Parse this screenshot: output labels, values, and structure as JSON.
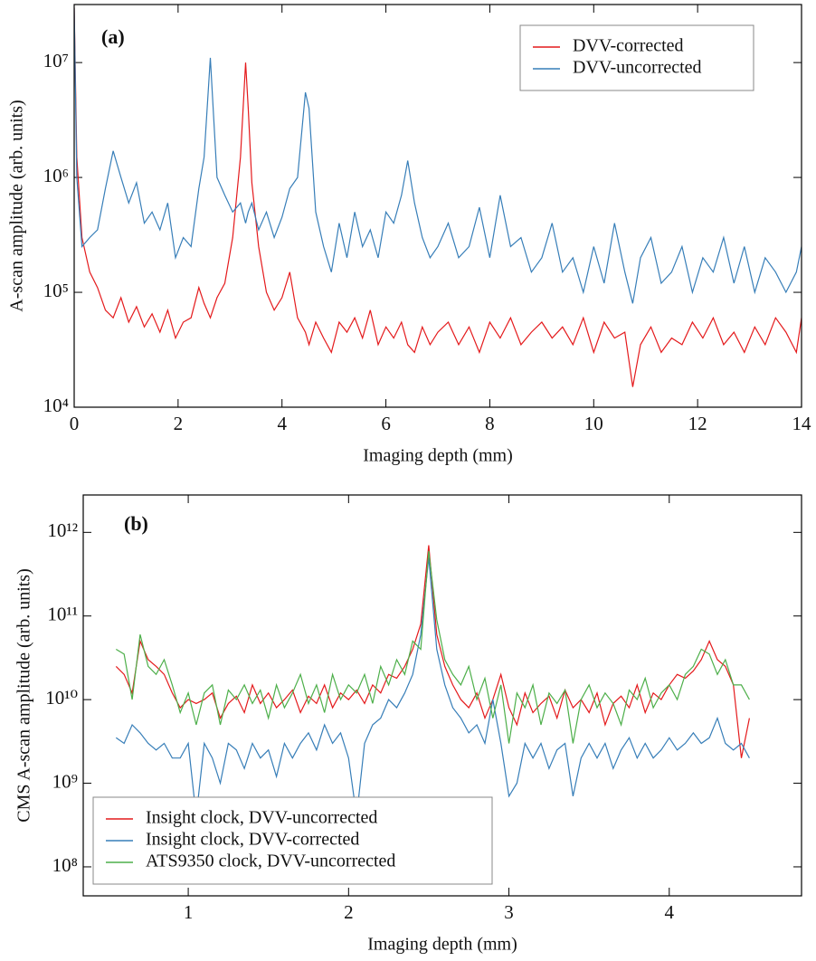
{
  "chart_data": [
    {
      "type": "line",
      "annotation": "(a)",
      "xlabel": "Imaging depth (mm)",
      "ylabel": "A-scan amplitude (arb. units)",
      "log_y": true,
      "legend": "upper right",
      "xlim": [
        0,
        14
      ],
      "ylim": [
        10000,
        32000000
      ],
      "xticks": [
        0,
        2,
        4,
        6,
        8,
        10,
        12,
        14
      ],
      "yticks": [
        {
          "value": 10000,
          "label": "10⁴"
        },
        {
          "value": 100000,
          "label": "10⁵"
        },
        {
          "value": 1000000,
          "label": "10⁶"
        },
        {
          "value": 10000000,
          "label": "10⁷"
        }
      ],
      "x": [
        0,
        0.05,
        0.15,
        0.3,
        0.45,
        0.6,
        0.75,
        0.9,
        1.05,
        1.2,
        1.35,
        1.5,
        1.65,
        1.8,
        1.95,
        2.1,
        2.25,
        2.4,
        2.5,
        2.62,
        2.75,
        2.9,
        3.05,
        3.2,
        3.3,
        3.35,
        3.42,
        3.55,
        3.7,
        3.85,
        4.0,
        4.15,
        4.3,
        4.45,
        4.52,
        4.65,
        4.8,
        4.95,
        5.1,
        5.25,
        5.4,
        5.55,
        5.7,
        5.85,
        6.0,
        6.15,
        6.3,
        6.42,
        6.55,
        6.7,
        6.85,
        7.0,
        7.2,
        7.4,
        7.6,
        7.8,
        8.0,
        8.2,
        8.4,
        8.6,
        8.8,
        9.0,
        9.2,
        9.4,
        9.6,
        9.8,
        10.0,
        10.2,
        10.4,
        10.6,
        10.75,
        10.9,
        11.1,
        11.3,
        11.5,
        11.7,
        11.9,
        12.1,
        12.3,
        12.5,
        12.7,
        12.9,
        13.1,
        13.3,
        13.5,
        13.7,
        13.9,
        14.0
      ],
      "series": [
        {
          "name": "DVV-corrected",
          "color": "#e41a1c",
          "values": [
            30000000,
            1500000,
            300000,
            150000,
            110000,
            70000,
            60000,
            90000,
            55000,
            75000,
            50000,
            65000,
            45000,
            70000,
            40000,
            55000,
            60000,
            110000,
            80000,
            60000,
            90000,
            120000,
            300000,
            1500000,
            10000000,
            4000000,
            900000,
            250000,
            100000,
            70000,
            90000,
            150000,
            60000,
            45000,
            35000,
            55000,
            40000,
            30000,
            55000,
            45000,
            60000,
            40000,
            70000,
            35000,
            50000,
            40000,
            55000,
            35000,
            30000,
            50000,
            35000,
            45000,
            55000,
            35000,
            50000,
            30000,
            55000,
            40000,
            60000,
            35000,
            45000,
            55000,
            40000,
            50000,
            35000,
            60000,
            30000,
            55000,
            40000,
            45000,
            15000,
            35000,
            50000,
            30000,
            40000,
            35000,
            55000,
            40000,
            60000,
            35000,
            45000,
            30000,
            50000,
            35000,
            60000,
            45000,
            30000,
            60000
          ]
        },
        {
          "name": "DVV-uncorrected",
          "color": "#377eb8",
          "values": [
            30000000,
            1000000,
            250000,
            300000,
            350000,
            800000,
            1700000,
            1000000,
            600000,
            900000,
            400000,
            500000,
            350000,
            600000,
            200000,
            300000,
            250000,
            800000,
            1500000,
            11000000,
            1000000,
            700000,
            500000,
            600000,
            400000,
            500000,
            600000,
            350000,
            500000,
            300000,
            450000,
            800000,
            1000000,
            5500000,
            4000000,
            500000,
            250000,
            150000,
            400000,
            200000,
            500000,
            250000,
            350000,
            200000,
            500000,
            400000,
            700000,
            1400000,
            600000,
            300000,
            200000,
            250000,
            400000,
            200000,
            250000,
            550000,
            200000,
            700000,
            250000,
            300000,
            150000,
            200000,
            400000,
            150000,
            200000,
            100000,
            250000,
            120000,
            400000,
            150000,
            80000,
            200000,
            300000,
            120000,
            150000,
            250000,
            100000,
            200000,
            150000,
            300000,
            120000,
            250000,
            100000,
            200000,
            150000,
            100000,
            150000,
            250000
          ]
        }
      ]
    },
    {
      "type": "line",
      "annotation": "(b)",
      "xlabel": "Imaging depth (mm)",
      "ylabel": "CMS A-scan amplitude (arb. units)",
      "log_y": true,
      "legend": "lower left",
      "xlim": [
        0.345,
        4.825
      ],
      "ylim": [
        45000000,
        2800000000000
      ],
      "xticks": [
        1,
        2,
        3,
        4
      ],
      "yticks": [
        {
          "value": 100000000,
          "label": "10⁸"
        },
        {
          "value": 1000000000,
          "label": "10⁹"
        },
        {
          "value": 10000000000,
          "label": "10¹⁰"
        },
        {
          "value": 100000000000,
          "label": "10¹¹"
        },
        {
          "value": 1000000000000,
          "label": "10¹²"
        }
      ],
      "x": [
        0.55,
        0.6,
        0.65,
        0.7,
        0.75,
        0.8,
        0.85,
        0.9,
        0.95,
        1.0,
        1.05,
        1.1,
        1.15,
        1.2,
        1.25,
        1.3,
        1.35,
        1.4,
        1.45,
        1.5,
        1.55,
        1.6,
        1.65,
        1.7,
        1.75,
        1.8,
        1.85,
        1.9,
        1.95,
        2.0,
        2.05,
        2.1,
        2.15,
        2.2,
        2.25,
        2.3,
        2.35,
        2.4,
        2.45,
        2.5,
        2.55,
        2.6,
        2.65,
        2.7,
        2.75,
        2.8,
        2.85,
        2.9,
        2.95,
        3.0,
        3.05,
        3.1,
        3.15,
        3.2,
        3.25,
        3.3,
        3.35,
        3.4,
        3.45,
        3.5,
        3.55,
        3.6,
        3.65,
        3.7,
        3.75,
        3.8,
        3.85,
        3.9,
        3.95,
        4.0,
        4.05,
        4.1,
        4.15,
        4.2,
        4.25,
        4.3,
        4.35,
        4.4,
        4.45,
        4.5
      ],
      "series": [
        {
          "name": "Insight clock, DVV-uncorrected",
          "color": "#e41a1c",
          "values": [
            25000000000.0,
            20000000000.0,
            12000000000.0,
            50000000000.0,
            30000000000.0,
            25000000000.0,
            20000000000.0,
            12000000000.0,
            8000000000.0,
            10000000000.0,
            9000000000.0,
            10000000000.0,
            12000000000.0,
            6000000000.0,
            9000000000.0,
            11000000000.0,
            7000000000.0,
            15000000000.0,
            9000000000.0,
            12000000000.0,
            8000000000.0,
            10000000000.0,
            13000000000.0,
            7000000000.0,
            11000000000.0,
            9000000000.0,
            15000000000.0,
            8000000000.0,
            12000000000.0,
            10000000000.0,
            13000000000.0,
            9000000000.0,
            15000000000.0,
            12000000000.0,
            20000000000.0,
            18000000000.0,
            25000000000.0,
            40000000000.0,
            80000000000.0,
            700000000000.0,
            60000000000.0,
            25000000000.0,
            15000000000.0,
            10000000000.0,
            8000000000.0,
            12000000000.0,
            6000000000.0,
            10000000000.0,
            20000000000.0,
            8000000000.0,
            5000000000.0,
            12000000000.0,
            7000000000.0,
            9000000000.0,
            11000000000.0,
            6000000000.0,
            13000000000.0,
            8000000000.0,
            10000000000.0,
            7000000000.0,
            12000000000.0,
            5000000000.0,
            9000000000.0,
            11000000000.0,
            8000000000.0,
            15000000000.0,
            7000000000.0,
            12000000000.0,
            10000000000.0,
            15000000000.0,
            20000000000.0,
            18000000000.0,
            22000000000.0,
            30000000000.0,
            50000000000.0,
            30000000000.0,
            25000000000.0,
            15000000000.0,
            2000000000.0,
            6000000000.0
          ]
        },
        {
          "name": "Insight clock, DVV-corrected",
          "color": "#377eb8",
          "values": [
            3500000000.0,
            3000000000.0,
            5000000000.0,
            4000000000.0,
            3000000000.0,
            2500000000.0,
            3000000000.0,
            2000000000.0,
            2000000000.0,
            3000000000.0,
            400000000.0,
            3000000000.0,
            2000000000.0,
            1000000000.0,
            3000000000.0,
            2500000000.0,
            1500000000.0,
            3000000000.0,
            2000000000.0,
            2500000000.0,
            1200000000.0,
            3000000000.0,
            2000000000.0,
            3000000000.0,
            4000000000.0,
            2500000000.0,
            5000000000.0,
            3000000000.0,
            4000000000.0,
            2000000000.0,
            400000000.0,
            3000000000.0,
            5000000000.0,
            6000000000.0,
            10000000000.0,
            8000000000.0,
            12000000000.0,
            20000000000.0,
            60000000000.0,
            500000000000.0,
            40000000000.0,
            15000000000.0,
            8000000000.0,
            6000000000.0,
            4000000000.0,
            5000000000.0,
            3000000000.0,
            10000000000.0,
            3000000000.0,
            700000000.0,
            1000000000.0,
            3000000000.0,
            2000000000.0,
            3000000000.0,
            1500000000.0,
            2500000000.0,
            3000000000.0,
            700000000.0,
            2000000000.0,
            3000000000.0,
            2000000000.0,
            3000000000.0,
            1500000000.0,
            2500000000.0,
            3500000000.0,
            2000000000.0,
            3000000000.0,
            2000000000.0,
            2500000000.0,
            3500000000.0,
            2500000000.0,
            3000000000.0,
            4000000000.0,
            3000000000.0,
            3500000000.0,
            6000000000.0,
            3000000000.0,
            2500000000.0,
            3000000000.0,
            2000000000.0
          ]
        },
        {
          "name": "ATS9350 clock, DVV-uncorrected",
          "color": "#4daf4a",
          "values": [
            40000000000.0,
            35000000000.0,
            10000000000.0,
            60000000000.0,
            25000000000.0,
            20000000000.0,
            30000000000.0,
            15000000000.0,
            7000000000.0,
            12000000000.0,
            5000000000.0,
            12000000000.0,
            15000000000.0,
            5000000000.0,
            13000000000.0,
            10000000000.0,
            15000000000.0,
            9000000000.0,
            13000000000.0,
            6000000000.0,
            15000000000.0,
            8000000000.0,
            12000000000.0,
            20000000000.0,
            9000000000.0,
            15000000000.0,
            7000000000.0,
            20000000000.0,
            10000000000.0,
            15000000000.0,
            12000000000.0,
            20000000000.0,
            9000000000.0,
            25000000000.0,
            15000000000.0,
            30000000000.0,
            20000000000.0,
            50000000000.0,
            40000000000.0,
            600000000000.0,
            90000000000.0,
            30000000000.0,
            20000000000.0,
            15000000000.0,
            25000000000.0,
            10000000000.0,
            18000000000.0,
            6000000000.0,
            15000000000.0,
            3000000000.0,
            12000000000.0,
            8000000000.0,
            15000000000.0,
            5000000000.0,
            12000000000.0,
            9000000000.0,
            13000000000.0,
            3000000000.0,
            10000000000.0,
            15000000000.0,
            8000000000.0,
            12000000000.0,
            9000000000.0,
            5000000000.0,
            13000000000.0,
            10000000000.0,
            18000000000.0,
            8000000000.0,
            12000000000.0,
            15000000000.0,
            10000000000.0,
            20000000000.0,
            25000000000.0,
            40000000000.0,
            35000000000.0,
            20000000000.0,
            30000000000.0,
            15000000000.0,
            15000000000.0,
            10000000000.0
          ]
        }
      ]
    }
  ]
}
